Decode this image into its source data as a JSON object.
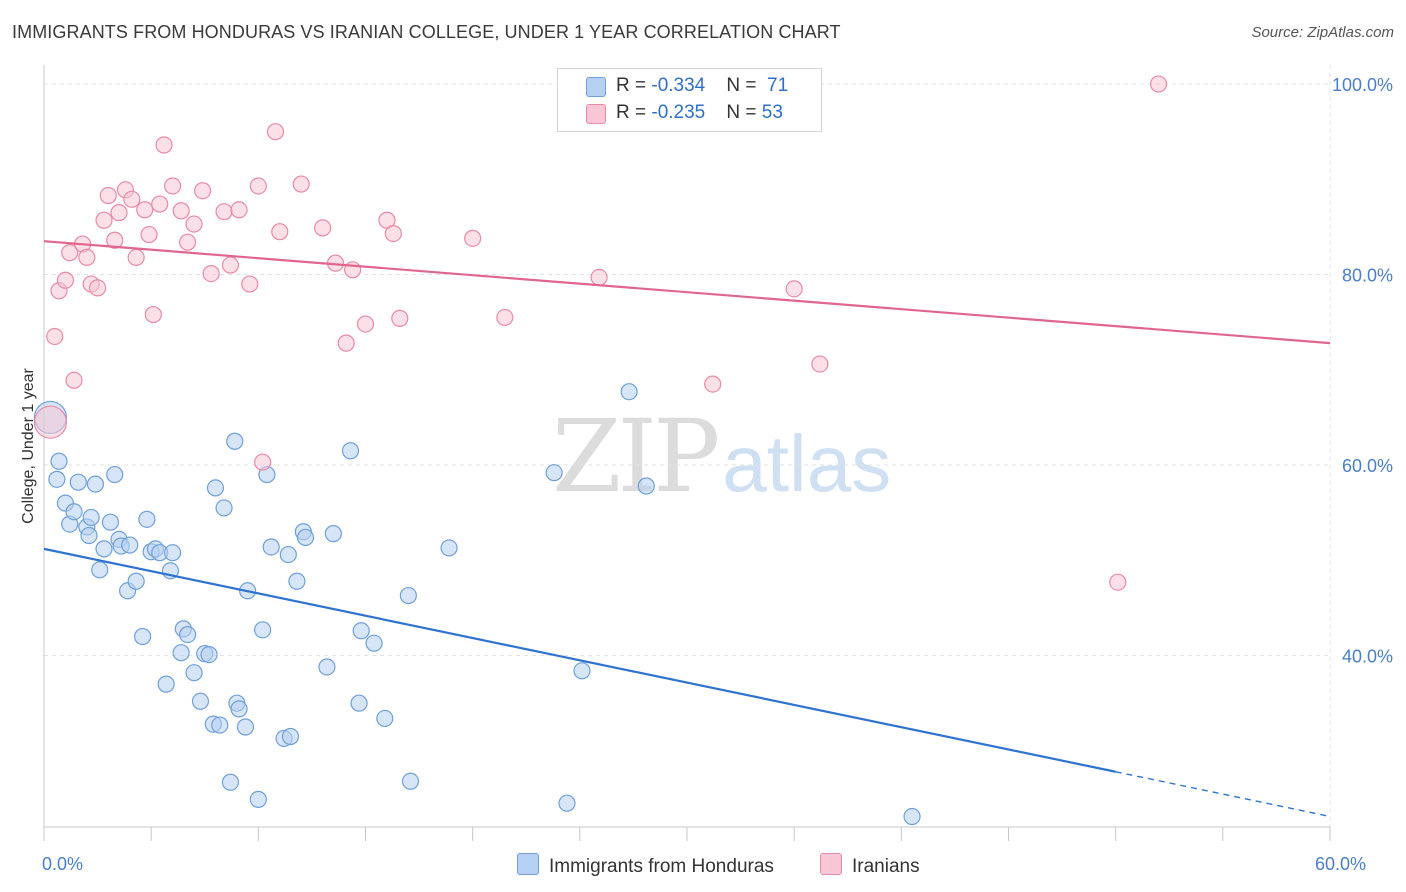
{
  "header": {
    "title": "IMMIGRANTS FROM HONDURAS VS IRANIAN COLLEGE, UNDER 1 YEAR CORRELATION CHART",
    "source": "Source: ZipAtlas.com"
  },
  "watermark": {
    "zip": "ZIP",
    "atlas": "atlas"
  },
  "legend": {
    "rows": [
      {
        "r_label": "R = ",
        "r_value": "-0.334",
        "n_label": "N = ",
        "n_value": "71"
      },
      {
        "r_label": "R = ",
        "r_value": "-0.235",
        "n_label": "N = ",
        "n_value": "53"
      }
    ]
  },
  "bottom_legend": [
    "Immigrants from Honduras",
    "Iranians"
  ],
  "colors": {
    "blue_fill": "#b6d0f2",
    "blue_stroke": "#6fa0dc",
    "blue_line": "#2f73d0",
    "pink_fill": "#f8c6d4",
    "pink_stroke": "#e98aa8",
    "pink_line": "#e0668f",
    "grid": "#e2e2e2",
    "tick_text": "#4a7fc8"
  },
  "chart_data": {
    "type": "scatter",
    "xlabel": "",
    "ylabel": "College, Under 1 year",
    "xlim": [
      0,
      60
    ],
    "ylim": [
      22,
      102
    ],
    "x_tick_labels": [
      {
        "value": 0,
        "label": "0.0%"
      },
      {
        "value": 60,
        "label": "60.0%"
      }
    ],
    "y_tick_labels": [
      {
        "value": 100,
        "label": "100.0%"
      },
      {
        "value": 80,
        "label": "80.0%"
      },
      {
        "value": 60,
        "label": "60.0%"
      },
      {
        "value": 40,
        "label": "40.0%"
      }
    ],
    "grid": true,
    "legend_position": "top-center",
    "series": [
      {
        "name": "Immigrants from Honduras",
        "r": -0.334,
        "n": 71,
        "trend": {
          "x0": 0,
          "y0": 51.2,
          "x1": 50,
          "y1": 27.8,
          "dash_to_x": 60,
          "dash_to_y": 23.1
        },
        "points": [
          {
            "x": 0.3,
            "y": 65,
            "big": true
          },
          {
            "x": 0.6,
            "y": 58.5
          },
          {
            "x": 0.7,
            "y": 60.4
          },
          {
            "x": 1.0,
            "y": 56.0
          },
          {
            "x": 1.2,
            "y": 53.8
          },
          {
            "x": 1.4,
            "y": 55.1
          },
          {
            "x": 1.6,
            "y": 58.2
          },
          {
            "x": 2.0,
            "y": 53.5
          },
          {
            "x": 2.1,
            "y": 52.6
          },
          {
            "x": 2.2,
            "y": 54.5
          },
          {
            "x": 2.4,
            "y": 58.0
          },
          {
            "x": 2.6,
            "y": 49.0
          },
          {
            "x": 2.8,
            "y": 51.2
          },
          {
            "x": 3.1,
            "y": 54.0
          },
          {
            "x": 3.3,
            "y": 59.0
          },
          {
            "x": 3.5,
            "y": 52.2
          },
          {
            "x": 3.6,
            "y": 51.5
          },
          {
            "x": 3.9,
            "y": 46.8
          },
          {
            "x": 4.0,
            "y": 51.6
          },
          {
            "x": 4.3,
            "y": 47.8
          },
          {
            "x": 4.6,
            "y": 42.0
          },
          {
            "x": 4.8,
            "y": 54.3
          },
          {
            "x": 5.0,
            "y": 50.9
          },
          {
            "x": 5.2,
            "y": 51.2
          },
          {
            "x": 5.4,
            "y": 50.8
          },
          {
            "x": 5.7,
            "y": 37.0
          },
          {
            "x": 5.9,
            "y": 48.9
          },
          {
            "x": 6.0,
            "y": 50.8
          },
          {
            "x": 6.4,
            "y": 40.3
          },
          {
            "x": 6.5,
            "y": 42.8
          },
          {
            "x": 6.7,
            "y": 42.2
          },
          {
            "x": 7.0,
            "y": 38.2
          },
          {
            "x": 7.3,
            "y": 35.2
          },
          {
            "x": 7.5,
            "y": 40.2
          },
          {
            "x": 7.7,
            "y": 40.1
          },
          {
            "x": 7.9,
            "y": 32.8
          },
          {
            "x": 8.0,
            "y": 57.6
          },
          {
            "x": 8.2,
            "y": 32.7
          },
          {
            "x": 8.4,
            "y": 55.5
          },
          {
            "x": 8.7,
            "y": 26.7
          },
          {
            "x": 8.9,
            "y": 62.5
          },
          {
            "x": 9.0,
            "y": 35.0
          },
          {
            "x": 9.1,
            "y": 34.4
          },
          {
            "x": 9.4,
            "y": 32.5
          },
          {
            "x": 9.5,
            "y": 46.8
          },
          {
            "x": 10.0,
            "y": 24.9
          },
          {
            "x": 10.2,
            "y": 42.7
          },
          {
            "x": 10.4,
            "y": 59.0
          },
          {
            "x": 10.6,
            "y": 51.4
          },
          {
            "x": 11.2,
            "y": 31.3
          },
          {
            "x": 11.4,
            "y": 50.6
          },
          {
            "x": 11.5,
            "y": 31.5
          },
          {
            "x": 11.8,
            "y": 47.8
          },
          {
            "x": 12.1,
            "y": 53.0
          },
          {
            "x": 12.2,
            "y": 52.4
          },
          {
            "x": 13.2,
            "y": 38.8
          },
          {
            "x": 13.5,
            "y": 52.8
          },
          {
            "x": 14.3,
            "y": 61.5
          },
          {
            "x": 14.7,
            "y": 35.0
          },
          {
            "x": 14.8,
            "y": 42.6
          },
          {
            "x": 15.4,
            "y": 41.3
          },
          {
            "x": 15.9,
            "y": 33.4
          },
          {
            "x": 17.0,
            "y": 46.3
          },
          {
            "x": 17.1,
            "y": 26.8
          },
          {
            "x": 18.9,
            "y": 51.3
          },
          {
            "x": 23.8,
            "y": 59.2
          },
          {
            "x": 24.4,
            "y": 24.5
          },
          {
            "x": 25.1,
            "y": 38.4
          },
          {
            "x": 27.3,
            "y": 67.7
          },
          {
            "x": 28.1,
            "y": 57.8
          },
          {
            "x": 40.5,
            "y": 23.1
          }
        ]
      },
      {
        "name": "Iranians",
        "r": -0.235,
        "n": 53,
        "trend": {
          "x0": 0,
          "y0": 83.5,
          "x1": 60,
          "y1": 72.8
        },
        "points": [
          {
            "x": 0.3,
            "y": 64.5,
            "big": true
          },
          {
            "x": 0.5,
            "y": 73.5
          },
          {
            "x": 0.7,
            "y": 78.3
          },
          {
            "x": 1.0,
            "y": 79.4
          },
          {
            "x": 1.2,
            "y": 82.3
          },
          {
            "x": 1.4,
            "y": 68.9
          },
          {
            "x": 1.8,
            "y": 83.2
          },
          {
            "x": 2.0,
            "y": 81.8
          },
          {
            "x": 2.2,
            "y": 79.0
          },
          {
            "x": 2.5,
            "y": 78.6
          },
          {
            "x": 2.8,
            "y": 85.7
          },
          {
            "x": 3.0,
            "y": 88.3
          },
          {
            "x": 3.3,
            "y": 83.6
          },
          {
            "x": 3.5,
            "y": 86.5
          },
          {
            "x": 3.8,
            "y": 88.9
          },
          {
            "x": 4.1,
            "y": 87.9
          },
          {
            "x": 4.3,
            "y": 81.8
          },
          {
            "x": 4.7,
            "y": 86.8
          },
          {
            "x": 4.9,
            "y": 84.2
          },
          {
            "x": 5.1,
            "y": 75.8
          },
          {
            "x": 5.4,
            "y": 87.4
          },
          {
            "x": 5.6,
            "y": 93.6
          },
          {
            "x": 6.0,
            "y": 89.3
          },
          {
            "x": 6.4,
            "y": 86.7
          },
          {
            "x": 6.7,
            "y": 83.4
          },
          {
            "x": 7.0,
            "y": 85.3
          },
          {
            "x": 7.4,
            "y": 88.8
          },
          {
            "x": 7.8,
            "y": 80.1
          },
          {
            "x": 8.4,
            "y": 86.6
          },
          {
            "x": 8.7,
            "y": 81.0
          },
          {
            "x": 9.1,
            "y": 86.8
          },
          {
            "x": 9.6,
            "y": 79.0
          },
          {
            "x": 10.0,
            "y": 89.3
          },
          {
            "x": 10.2,
            "y": 60.3
          },
          {
            "x": 10.8,
            "y": 95.0
          },
          {
            "x": 11.0,
            "y": 84.5
          },
          {
            "x": 12.0,
            "y": 89.5
          },
          {
            "x": 13.0,
            "y": 84.9
          },
          {
            "x": 13.6,
            "y": 81.2
          },
          {
            "x": 14.1,
            "y": 72.8
          },
          {
            "x": 14.4,
            "y": 80.5
          },
          {
            "x": 15.0,
            "y": 74.8
          },
          {
            "x": 16.0,
            "y": 85.7
          },
          {
            "x": 16.3,
            "y": 84.3
          },
          {
            "x": 16.6,
            "y": 75.4
          },
          {
            "x": 20.0,
            "y": 83.8
          },
          {
            "x": 21.5,
            "y": 75.5
          },
          {
            "x": 25.9,
            "y": 79.7
          },
          {
            "x": 31.2,
            "y": 68.5
          },
          {
            "x": 35.0,
            "y": 78.5
          },
          {
            "x": 36.2,
            "y": 70.6
          },
          {
            "x": 50.1,
            "y": 47.7
          },
          {
            "x": 52.0,
            "y": 100.0
          }
        ]
      }
    ]
  }
}
